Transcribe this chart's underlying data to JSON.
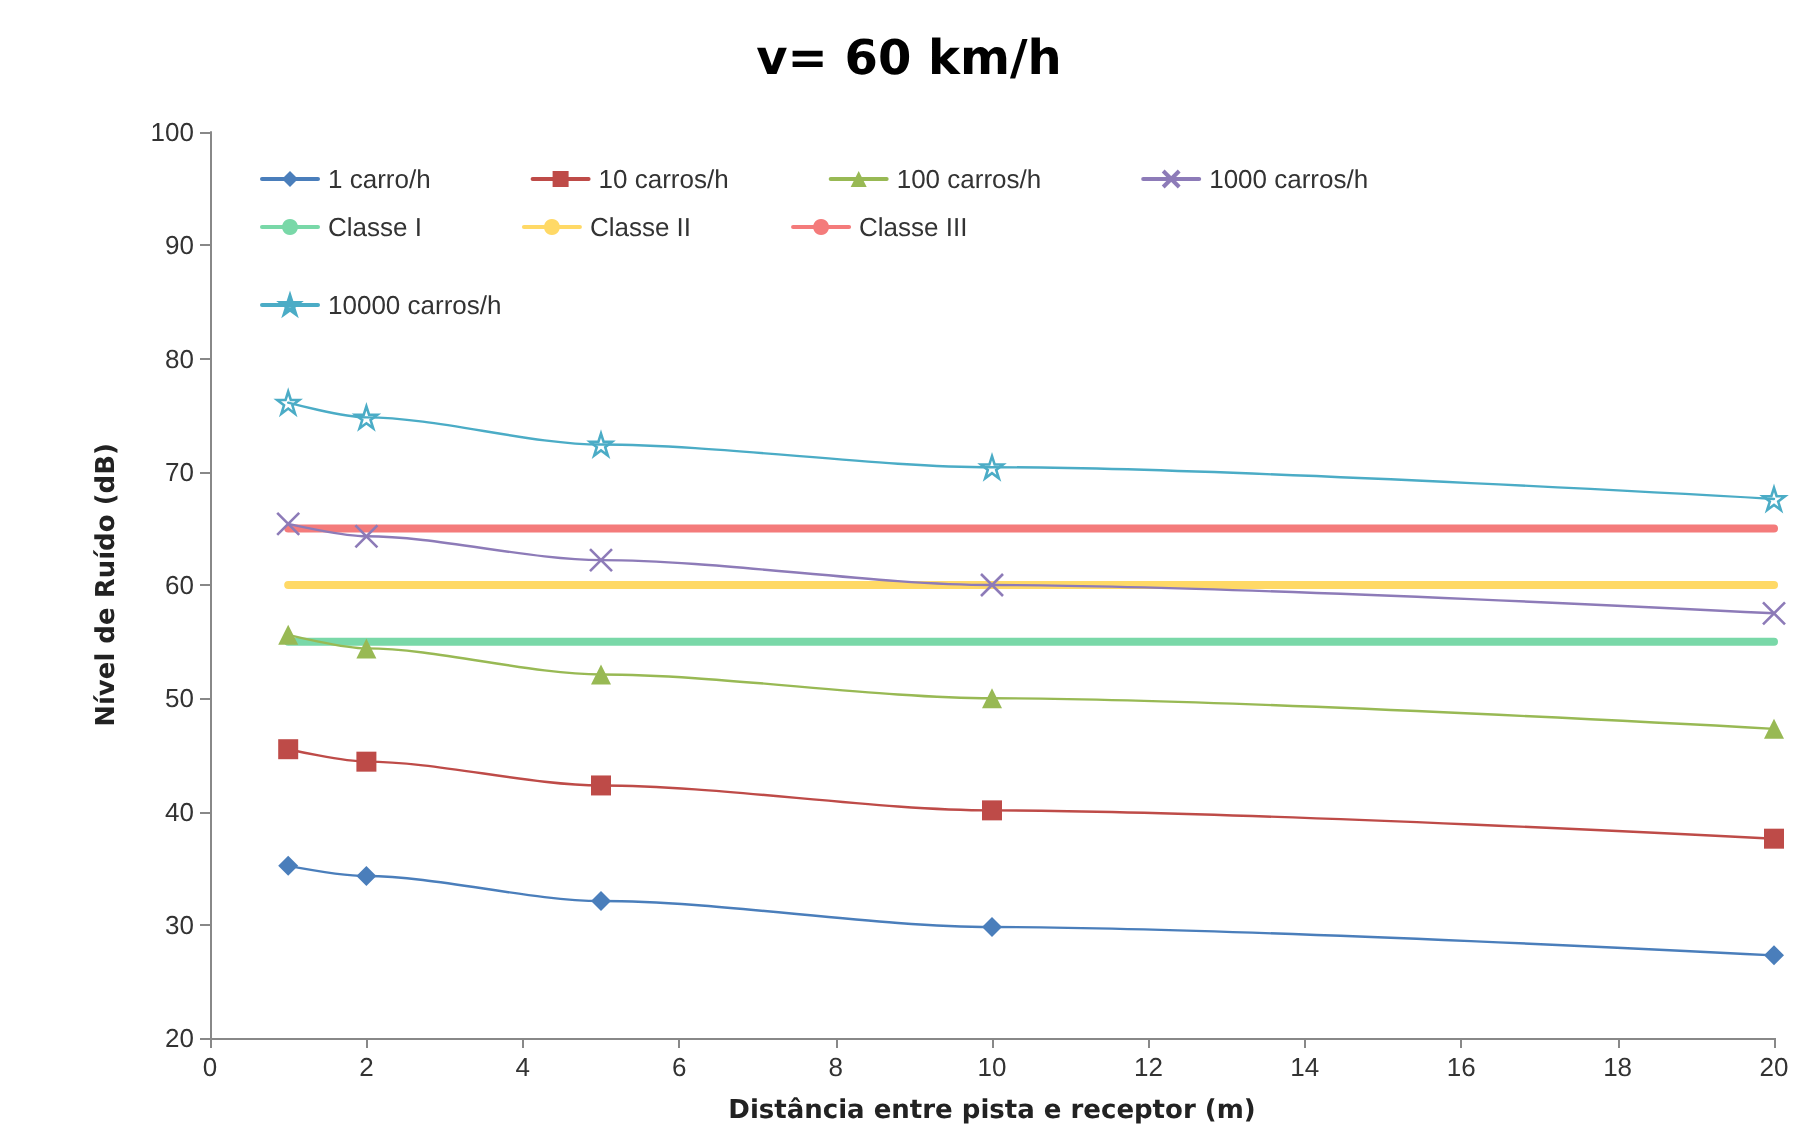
{
  "chart_data": {
    "type": "line",
    "title": "v= 60 km/h",
    "xlabel": "Distância entre pista e receptor (m)",
    "ylabel": "Nível de Ruído (dB)",
    "x": [
      1,
      2,
      5,
      10,
      20
    ],
    "xlim": [
      0,
      20
    ],
    "xticks": [
      0,
      2,
      4,
      6,
      8,
      10,
      12,
      14,
      16,
      18,
      20
    ],
    "ylim": [
      20,
      100
    ],
    "yticks": [
      20,
      30,
      40,
      50,
      60,
      70,
      80,
      90,
      100
    ],
    "grid": false,
    "legend": "top",
    "line_style": "solid",
    "series": [
      {
        "name": "1 carro/h",
        "color": "#4a7ebb",
        "marker": "diamond",
        "values": [
          35.2,
          34.3,
          32.1,
          29.8,
          27.3
        ]
      },
      {
        "name": "10 carros/h",
        "color": "#be4b48",
        "marker": "square",
        "values": [
          45.5,
          44.4,
          42.3,
          40.1,
          37.6
        ]
      },
      {
        "name": "100 carros/h",
        "color": "#98b954",
        "marker": "triangle",
        "values": [
          55.6,
          54.4,
          52.1,
          50.0,
          47.3
        ]
      },
      {
        "name": "1000 carros/h",
        "color": "#8d7bb8",
        "marker": "cross",
        "values": [
          65.4,
          64.3,
          62.2,
          60.0,
          57.5
        ]
      },
      {
        "name": "10000 carros/h",
        "color": "#4bacc6",
        "marker": "star",
        "values": [
          76.1,
          74.8,
          72.4,
          70.4,
          67.6
        ]
      },
      {
        "name": "Classe I",
        "color": "#79d8a8",
        "marker": "none",
        "values": [
          55,
          55,
          55,
          55,
          55
        ]
      },
      {
        "name": "Classe II",
        "color": "#ffd966",
        "marker": "none",
        "values": [
          60,
          60,
          60,
          60,
          60
        ]
      },
      {
        "name": "Classe III",
        "color": "#f47b7b",
        "marker": "none",
        "values": [
          65,
          65,
          65,
          65,
          65
        ]
      }
    ]
  }
}
